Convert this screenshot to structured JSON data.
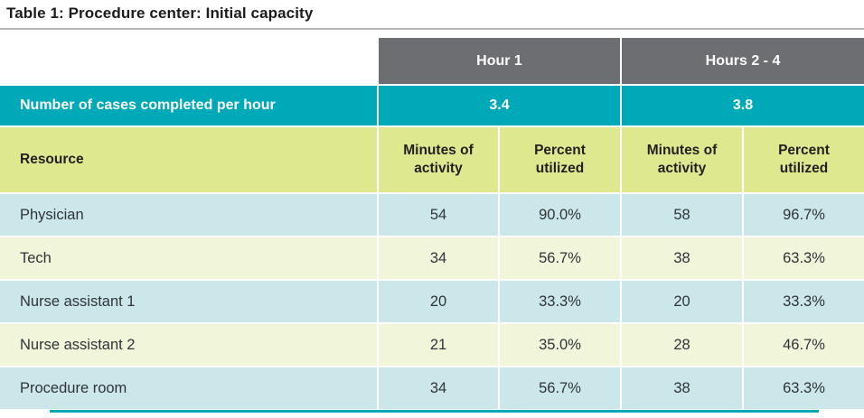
{
  "title": "Table 1: Procedure center: Initial capacity",
  "colors": {
    "header_gray": "#6d6e71",
    "teal": "#00a9b7",
    "yellow_green": "#dee98f",
    "light_blue": "#cbe7ea",
    "cream": "#f1f5da"
  },
  "table": {
    "hour_groups": [
      {
        "label": "Hour 1",
        "cases": "3.4"
      },
      {
        "label": "Hours 2 - 4",
        "cases": "3.8"
      }
    ],
    "cases_row_label": "Number of cases completed per hour",
    "column_headers": {
      "resource": "Resource",
      "minutes": "Minutes of activity",
      "percent": "Percent utilized"
    },
    "rows": [
      {
        "resource": "Physician",
        "values": [
          "54",
          "90.0%",
          "58",
          "96.7%"
        ]
      },
      {
        "resource": "Tech",
        "values": [
          "34",
          "56.7%",
          "38",
          "63.3%"
        ]
      },
      {
        "resource": "Nurse assistant 1",
        "values": [
          "20",
          "33.3%",
          "20",
          "33.3%"
        ]
      },
      {
        "resource": "Nurse assistant 2",
        "values": [
          "21",
          "35.0%",
          "28",
          "46.7%"
        ]
      },
      {
        "resource": "Procedure room",
        "values": [
          "34",
          "56.7%",
          "38",
          "63.3%"
        ]
      }
    ]
  }
}
